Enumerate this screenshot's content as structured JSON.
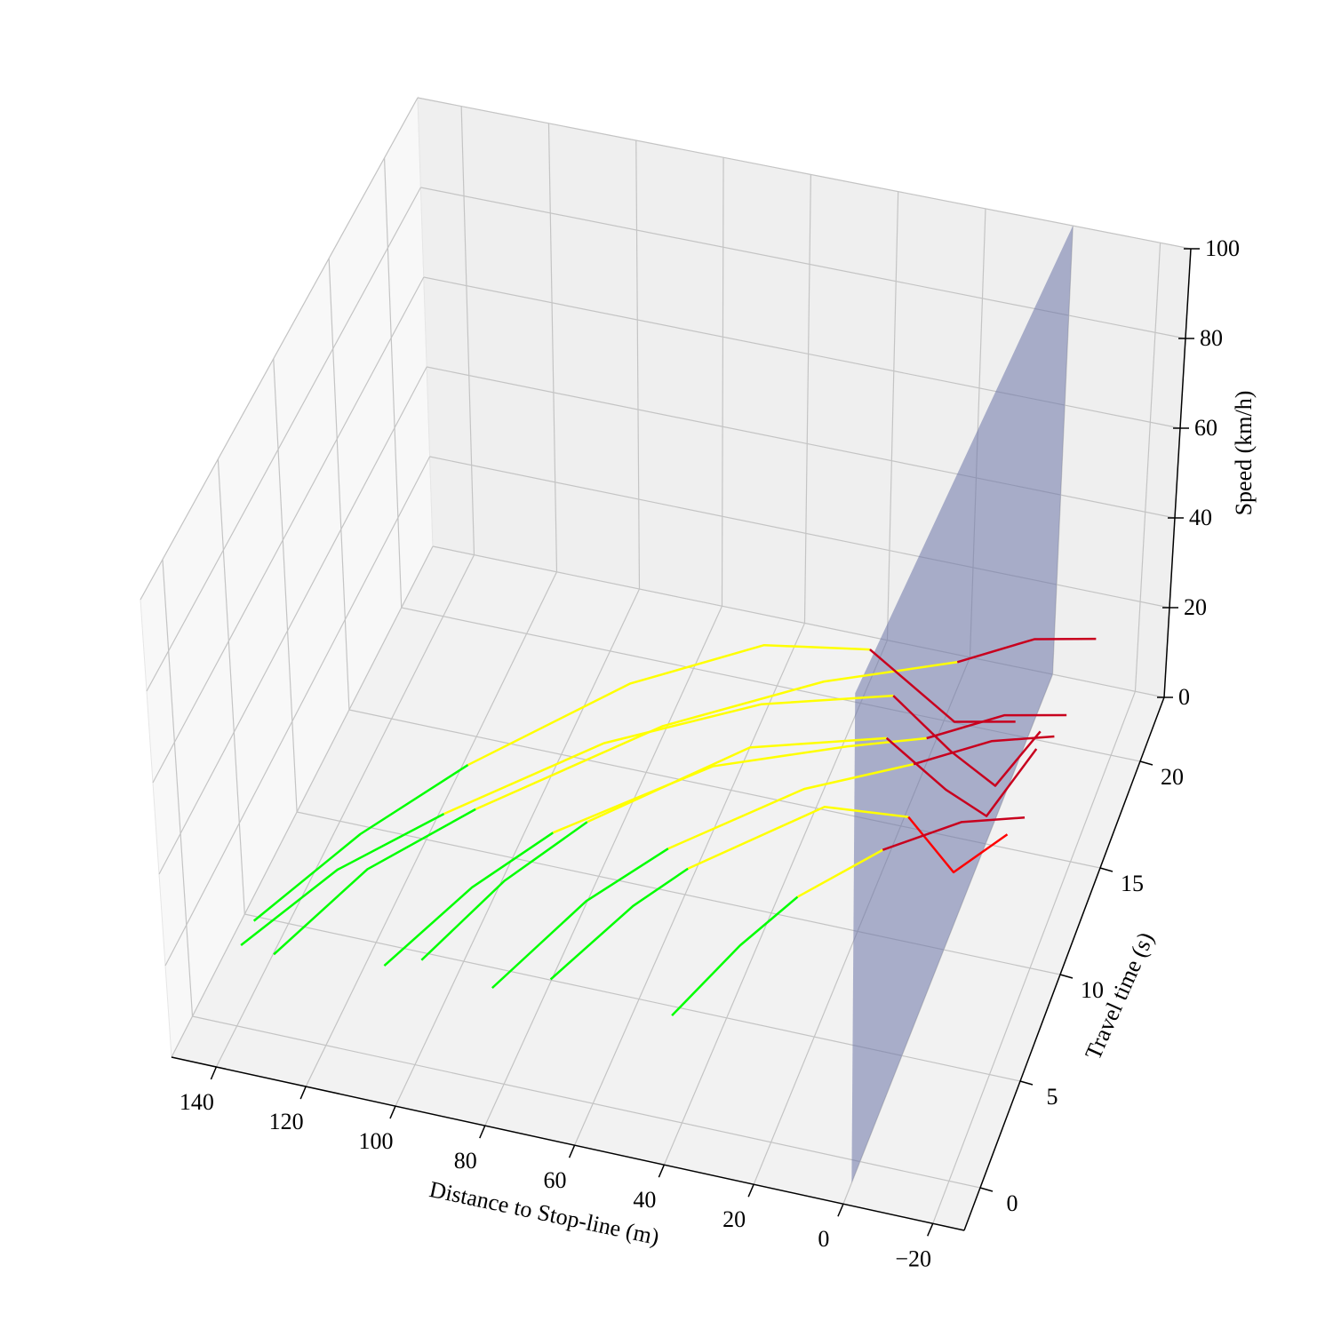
{
  "chart_data": {
    "type": "line3d",
    "xlabel": "Distance to Stop-line (m)",
    "ylabel": "Travel time (s)",
    "zlabel": "Speed (km/h)",
    "xlim": [
      150,
      -27
    ],
    "ylim": [
      -2,
      23
    ],
    "zlim": [
      0,
      100
    ],
    "xticks": [
      140,
      120,
      100,
      80,
      60,
      40,
      20,
      0,
      {
        "value": -20,
        "label": "−20"
      }
    ],
    "yticks": [
      0,
      5,
      10,
      15,
      20
    ],
    "zticks": [
      0,
      20,
      40,
      60,
      80,
      100
    ],
    "grid": true,
    "plane": {
      "x": 0,
      "ylim": [
        -1,
        23
      ],
      "zlim": [
        0,
        100
      ],
      "color": "#6b74a8",
      "alpha": 0.55
    },
    "series": [
      {
        "color": "#00ff00",
        "x": [
          138,
          120,
          100
        ],
        "y": [
          0,
          1.8,
          3.6
        ],
        "z": [
          18,
          30,
          38
        ]
      },
      {
        "color": "#ffff00",
        "x": [
          100,
          70,
          40,
          15
        ],
        "y": [
          3.6,
          6.3,
          8.8,
          11.2
        ],
        "z": [
          38,
          47,
          50,
          46
        ]
      },
      {
        "color": "#c8001e",
        "x": [
          15,
          5,
          0,
          -3
        ],
        "y": [
          11.2,
          13,
          16,
          20
        ],
        "z": [
          46,
          28,
          8,
          2
        ]
      },
      {
        "color": "#00ff00",
        "x": [
          132,
          115,
          95
        ],
        "y": [
          0.5,
          2.5,
          4.5
        ],
        "z": [
          15,
          28,
          36
        ]
      },
      {
        "color": "#ffff00",
        "x": [
          95,
          60,
          30,
          5
        ],
        "y": [
          4.5,
          7.8,
          10.8,
          13.5
        ],
        "z": [
          36,
          46,
          48,
          45
        ]
      },
      {
        "color": "#c8001e",
        "x": [
          5,
          -10,
          -22
        ],
        "y": [
          13.5,
          14.8,
          16
        ],
        "z": [
          45,
          47,
          44
        ]
      },
      {
        "color": "#00ff00",
        "x": [
          106,
          90,
          75
        ],
        "y": [
          0,
          1.8,
          3.3
        ],
        "z": [
          20,
          32,
          40
        ]
      },
      {
        "color": "#ffff00",
        "x": [
          75,
          45,
          20,
          5
        ],
        "y": [
          3.3,
          6,
          8.5,
          10
        ],
        "z": [
          40,
          48,
          46,
          44
        ]
      },
      {
        "color": "#c8001e",
        "x": [
          5,
          -10,
          -22
        ],
        "y": [
          10,
          11.3,
          12.5
        ],
        "z": [
          44,
          46,
          43
        ]
      },
      {
        "color": "#00ff00",
        "x": [
          100,
          85,
          70
        ],
        "y": [
          1,
          2.8,
          4.5
        ],
        "z": [
          18,
          30,
          38
        ]
      },
      {
        "color": "#ffff00",
        "x": [
          70,
          40,
          15
        ],
        "y": [
          4.5,
          7.6,
          10.5
        ],
        "z": [
          38,
          46,
          40
        ]
      },
      {
        "color": "#c8001e",
        "x": [
          15,
          5,
          0,
          -4
        ],
        "y": [
          10.5,
          12.5,
          15,
          19
        ],
        "z": [
          40,
          22,
          6,
          3
        ]
      },
      {
        "color": "#00ff00",
        "x": [
          82,
          65,
          50
        ],
        "y": [
          0,
          2,
          3.6
        ],
        "z": [
          20,
          33,
          40
        ]
      },
      {
        "color": "#ffff00",
        "x": [
          50,
          25,
          5
        ],
        "y": [
          3.6,
          6.2,
          8.5
        ],
        "z": [
          40,
          46,
          45
        ]
      },
      {
        "color": "#c8001e",
        "x": [
          5,
          -10,
          -22
        ],
        "y": [
          8.5,
          9.8,
          11
        ],
        "z": [
          45,
          47,
          45
        ]
      },
      {
        "color": "#00ff00",
        "x": [
          70,
          55,
          45
        ],
        "y": [
          0.5,
          2.2,
          3.3
        ],
        "z": [
          22,
          33,
          38
        ]
      },
      {
        "color": "#ffff00",
        "x": [
          45,
          20,
          5
        ],
        "y": [
          3.3,
          6,
          8
        ],
        "z": [
          38,
          44,
          36
        ]
      },
      {
        "color": "#ff0000",
        "x": [
          5,
          0,
          -5
        ],
        "y": [
          8,
          11,
          15
        ],
        "z": [
          36,
          12,
          3
        ]
      },
      {
        "color": "#00ff00",
        "x": [
          42,
          30,
          20
        ],
        "y": [
          0,
          1.6,
          3
        ],
        "z": [
          22,
          32,
          38
        ]
      },
      {
        "color": "#ffff00",
        "x": [
          20,
          5
        ],
        "y": [
          3,
          5
        ],
        "z": [
          38,
          42
        ]
      },
      {
        "color": "#c8001e",
        "x": [
          5,
          -10,
          -22
        ],
        "y": [
          5,
          6.3,
          7.5
        ],
        "z": [
          42,
          45,
          43
        ]
      },
      {
        "color": "#00ff00",
        "x": [
          140,
          120,
          100
        ],
        "y": [
          2,
          4,
          6
        ],
        "z": [
          14,
          28,
          38
        ]
      },
      {
        "color": "#ffff00",
        "x": [
          100,
          70,
          45,
          25
        ],
        "y": [
          6,
          9,
          11.5,
          13.5
        ],
        "z": [
          38,
          48,
          50,
          44
        ]
      },
      {
        "color": "#c8001e",
        "x": [
          25,
          10,
          3
        ],
        "y": [
          13.5,
          16,
          20
        ],
        "z": [
          44,
          20,
          3
        ]
      }
    ]
  }
}
